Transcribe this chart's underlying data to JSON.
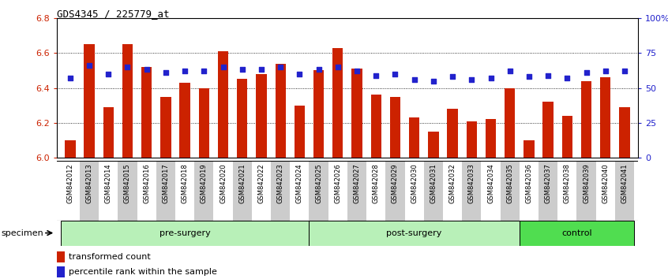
{
  "title": "GDS4345 / 225779_at",
  "samples": [
    "GSM842012",
    "GSM842013",
    "GSM842014",
    "GSM842015",
    "GSM842016",
    "GSM842017",
    "GSM842018",
    "GSM842019",
    "GSM842020",
    "GSM842021",
    "GSM842022",
    "GSM842023",
    "GSM842024",
    "GSM842025",
    "GSM842026",
    "GSM842027",
    "GSM842028",
    "GSM842029",
    "GSM842030",
    "GSM842031",
    "GSM842032",
    "GSM842033",
    "GSM842034",
    "GSM842035",
    "GSM842036",
    "GSM842037",
    "GSM842038",
    "GSM842039",
    "GSM842040",
    "GSM842041"
  ],
  "transformed_count": [
    6.1,
    6.65,
    6.29,
    6.65,
    6.52,
    6.35,
    6.43,
    6.4,
    6.61,
    6.45,
    6.48,
    6.54,
    6.3,
    6.5,
    6.63,
    6.51,
    6.36,
    6.35,
    6.23,
    6.15,
    6.28,
    6.21,
    6.22,
    6.4,
    6.1,
    6.32,
    6.24,
    6.44,
    6.46,
    6.29
  ],
  "percentile_rank": [
    57,
    66,
    60,
    65,
    63,
    61,
    62,
    62,
    65,
    63,
    63,
    65,
    60,
    63,
    65,
    62,
    59,
    60,
    56,
    55,
    58,
    56,
    57,
    62,
    58,
    59,
    57,
    61,
    62,
    62
  ],
  "groups": [
    {
      "label": "pre-surgery",
      "start": 0,
      "end": 13
    },
    {
      "label": "post-surgery",
      "start": 13,
      "end": 24
    },
    {
      "label": "control",
      "start": 24,
      "end": 30
    }
  ],
  "group_colors": [
    "#b8f0b8",
    "#b8f0b8",
    "#50dd50"
  ],
  "ylim_left": [
    6.0,
    6.8
  ],
  "ylim_right": [
    0,
    100
  ],
  "bar_color": "#cc2200",
  "dot_color": "#2222cc",
  "legend_tc": "transformed count",
  "legend_pr": "percentile rank within the sample",
  "yticks_left": [
    6.0,
    6.2,
    6.4,
    6.6,
    6.8
  ],
  "yticks_right": [
    0,
    25,
    50,
    75,
    100
  ],
  "ytick_labels_right": [
    "0",
    "25",
    "50",
    "75",
    "100%"
  ]
}
